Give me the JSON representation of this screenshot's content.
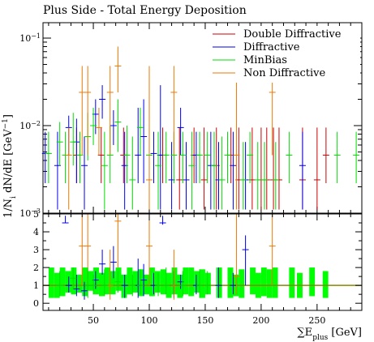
{
  "chart_data": [
    {
      "type": "scatter",
      "title": "Plus Side - Total Energy Deposition",
      "ylabel": "1/N_{i} dN/dE [GeV^{-1}]",
      "yscale": "log",
      "ylim": [
        0.001,
        0.15
      ],
      "xlim": [
        5,
        290
      ],
      "x_ticks": [
        50,
        100,
        150,
        200,
        250
      ],
      "y_tick_labels": [
        "10^{-3}",
        "10^{-2}",
        "10^{-1}"
      ],
      "legend": {
        "placement": "top-right",
        "entries": [
          {
            "name": "Double Diffractive",
            "color": "#cc0000"
          },
          {
            "name": "Diffractive",
            "color": "#0000ee"
          },
          {
            "name": "MinBias",
            "color": "#00dd00"
          },
          {
            "name": "Non Diffractive",
            "color": "#ee7700"
          }
        ]
      },
      "series": [
        {
          "name": "Double Diffractive",
          "color": "#cc0000",
          "points": [
            [
              35,
              0.0046,
              0.0022,
              0.0095
            ],
            [
              57,
              0.0046,
              0.0022,
              0.0095
            ],
            [
              77,
              0.0046,
              0.0022,
              0.0095
            ],
            [
              112,
              0.0046,
              0.0022,
              0.0095
            ],
            [
              127,
              0.0024,
              0.0011,
              0.0095
            ],
            [
              140,
              0.0046,
              0.0022,
              0.0095
            ],
            [
              149,
              0.0024,
              0.0011,
              0.0095
            ],
            [
              160,
              0.0035,
              0.0011,
              0.0095
            ],
            [
              173,
              0.0046,
              0.0022,
              0.0095
            ],
            [
              180,
              0.0024,
              0.0011,
              0.0095
            ],
            [
              192,
              0.0024,
              0.0011,
              0.0095
            ],
            [
              200,
              0.0024,
              0.0011,
              0.0095
            ],
            [
              205,
              0.0024,
              0.0011,
              0.0095
            ],
            [
              211,
              0.0024,
              0.0011,
              0.0095
            ],
            [
              216,
              0.0024,
              0.0011,
              0.0095
            ],
            [
              237,
              0.0024,
              0.0011,
              0.0095
            ],
            [
              250,
              0.0024,
              0.0011,
              0.0095
            ],
            [
              258,
              0.0046,
              0.0022,
              0.0095
            ]
          ]
        },
        {
          "name": "Diffractive",
          "color": "#0000ee",
          "points": [
            [
              7,
              0.0048,
              0.0022,
              0.0085
            ],
            [
              18,
              0.0035,
              0.0011,
              0.0085
            ],
            [
              28,
              0.0095,
              0.0046,
              0.013
            ],
            [
              35,
              0.0065,
              0.0022,
              0.012
            ],
            [
              42,
              0.0035,
              0.0011,
              0.0075
            ],
            [
              52,
              0.0135,
              0.008,
              0.02
            ],
            [
              58,
              0.02,
              0.012,
              0.029
            ],
            [
              68,
              0.01,
              0.006,
              0.015
            ],
            [
              78,
              0.0035,
              0.0011,
              0.0085
            ],
            [
              90,
              0.0046,
              0.0022,
              0.016
            ],
            [
              95,
              0.0075,
              0.0022,
              0.02
            ],
            [
              104,
              0.0048,
              0.0022,
              0.0085
            ],
            [
              110,
              0.0046,
              0.0011,
              0.029
            ],
            [
              120,
              0.0024,
              0.0011,
              0.0065
            ],
            [
              128,
              0.0095,
              0.0046,
              0.016
            ],
            [
              133,
              0.0024,
              0.0011,
              0.0065
            ],
            [
              142,
              0.0046,
              0.0022,
              0.0085
            ],
            [
              155,
              0.0035,
              0.0011,
              0.0085
            ],
            [
              162,
              0.0024,
              0.0011,
              0.0065
            ],
            [
              175,
              0.0035,
              0.0011,
              0.0085
            ],
            [
              186,
              0.0024,
              0.0011,
              0.0065
            ],
            [
              237,
              0.0035,
              0.0011,
              0.0085
            ]
          ]
        },
        {
          "name": "MinBias",
          "color": "#00dd00",
          "points": [
            [
              10,
              0.0048,
              0.0022,
              0.0085
            ],
            [
              20,
              0.0065,
              0.0035,
              0.011
            ],
            [
              25,
              0.0046,
              0.0022,
              0.0085
            ],
            [
              32,
              0.0065,
              0.0035,
              0.014
            ],
            [
              38,
              0.0046,
              0.0022,
              0.0085
            ],
            [
              45,
              0.0075,
              0.004,
              0.014
            ],
            [
              50,
              0.01,
              0.006,
              0.016
            ],
            [
              60,
              0.0035,
              0.0011,
              0.0085
            ],
            [
              65,
              0.0046,
              0.0022,
              0.01
            ],
            [
              72,
              0.011,
              0.005,
              0.02
            ],
            [
              80,
              0.0046,
              0.0022,
              0.01
            ],
            [
              85,
              0.0024,
              0.0011,
              0.0075
            ],
            [
              92,
              0.0095,
              0.0046,
              0.016
            ],
            [
              100,
              0.0046,
              0.0022,
              0.012
            ],
            [
              108,
              0.0035,
              0.0011,
              0.0085
            ],
            [
              115,
              0.0046,
              0.0022,
              0.0085
            ],
            [
              122,
              0.0046,
              0.0022,
              0.0085
            ],
            [
              130,
              0.0046,
              0.0022,
              0.0085
            ],
            [
              138,
              0.0035,
              0.0011,
              0.0085
            ],
            [
              145,
              0.0046,
              0.0022,
              0.0085
            ],
            [
              152,
              0.0046,
              0.0022,
              0.0085
            ],
            [
              158,
              0.0035,
              0.0011,
              0.0085
            ],
            [
              165,
              0.0024,
              0.0011,
              0.0075
            ],
            [
              170,
              0.0046,
              0.0022,
              0.0085
            ],
            [
              184,
              0.0024,
              0.0011,
              0.0065
            ],
            [
              190,
              0.0046,
              0.0022,
              0.0085
            ],
            [
              197,
              0.0024,
              0.0011,
              0.0065
            ],
            [
              203,
              0.0024,
              0.0011,
              0.0065
            ],
            [
              213,
              0.0024,
              0.0011,
              0.0065
            ],
            [
              225,
              0.0046,
              0.0022,
              0.0085
            ],
            [
              268,
              0.0046,
              0.0022,
              0.0085
            ],
            [
              285,
              0.0046,
              0.0022,
              0.0085
            ]
          ]
        },
        {
          "name": "Non Diffractive",
          "color": "#ee7700",
          "points": [
            [
              28,
              0.0046,
              0.0011,
              0.0095
            ],
            [
              40,
              0.024,
              0.0046,
              0.048
            ],
            [
              45,
              0.024,
              0.0046,
              0.048
            ],
            [
              55,
              0.0095,
              0.0046,
              0.016
            ],
            [
              65,
              0.024,
              0.0046,
              0.048
            ],
            [
              72,
              0.048,
              0.024,
              0.08
            ],
            [
              100,
              0.0024,
              0.0011,
              0.048
            ],
            [
              122,
              0.024,
              0.0046,
              0.048
            ],
            [
              178,
              0.0046,
              0.0011,
              0.048
            ],
            [
              210,
              0.024,
              0.0046,
              0.048
            ]
          ]
        }
      ]
    },
    {
      "type": "scatter",
      "xlabel": "∑E_{plus} [GeV]",
      "ylabel": "",
      "xlim": [
        5,
        290
      ],
      "ylim": [
        -0.4,
        5
      ],
      "x_ticks": [
        50,
        100,
        150,
        200,
        250
      ],
      "y_ticks": [
        0,
        1,
        2,
        3,
        4,
        5
      ],
      "reference_line": {
        "y": 1,
        "color": "#888800"
      },
      "band": {
        "color": "#00ff00",
        "description": "MinBias uncertainty band",
        "bins": [
          [
            10,
            15,
            0.3,
            2.0
          ],
          [
            15,
            20,
            0.3,
            1.7
          ],
          [
            20,
            25,
            0.4,
            2.0
          ],
          [
            25,
            30,
            0.6,
            1.8
          ],
          [
            30,
            35,
            0.5,
            2.0
          ],
          [
            35,
            40,
            0.6,
            1.6
          ],
          [
            40,
            45,
            0.4,
            2.0
          ],
          [
            45,
            50,
            0.7,
            1.8
          ],
          [
            50,
            55,
            0.5,
            2.0
          ],
          [
            55,
            60,
            0.4,
            1.7
          ],
          [
            60,
            65,
            0.5,
            2.0
          ],
          [
            65,
            70,
            0.5,
            1.8
          ],
          [
            70,
            75,
            0.7,
            2.0
          ],
          [
            75,
            80,
            0.3,
            1.6
          ],
          [
            80,
            85,
            0.5,
            2.0
          ],
          [
            85,
            90,
            0.6,
            1.8
          ],
          [
            90,
            95,
            0.4,
            1.9
          ],
          [
            95,
            100,
            0.5,
            1.6
          ],
          [
            100,
            105,
            0.4,
            2.0
          ],
          [
            105,
            110,
            0.6,
            1.8
          ],
          [
            110,
            115,
            0.5,
            1.9
          ],
          [
            115,
            120,
            0.3,
            1.7
          ],
          [
            120,
            125,
            0.5,
            2.0
          ],
          [
            125,
            130,
            0.3,
            1.6
          ],
          [
            130,
            135,
            0.5,
            2.0
          ],
          [
            135,
            140,
            0.4,
            2.0
          ],
          [
            140,
            145,
            0.6,
            1.8
          ],
          [
            145,
            150,
            0.3,
            1.9
          ],
          [
            150,
            155,
            0.5,
            1.7
          ],
          [
            160,
            165,
            0.3,
            2.0
          ],
          [
            170,
            175,
            0.3,
            2.0
          ],
          [
            175,
            180,
            0.4,
            1.6
          ],
          [
            180,
            185,
            0.3,
            1.9
          ],
          [
            190,
            195,
            0.5,
            2.0
          ],
          [
            195,
            200,
            0.3,
            1.7
          ],
          [
            200,
            205,
            0.4,
            2.0
          ],
          [
            205,
            210,
            0.3,
            1.9
          ],
          [
            210,
            215,
            0.3,
            2.0
          ],
          [
            225,
            230,
            0.3,
            2.0
          ],
          [
            232,
            237,
            0.3,
            1.7
          ],
          [
            243,
            248,
            0.4,
            2.0
          ],
          [
            255,
            260,
            0.3,
            1.8
          ]
        ]
      },
      "series": [
        {
          "name": "Diffractive",
          "color": "#0000ee",
          "points": [
            [
              25,
              4.5,
              4.5,
              4.9
            ],
            [
              28,
              1.0,
              0.6,
              1.5
            ],
            [
              35,
              0.8,
              0.4,
              1.6
            ],
            [
              42,
              0.7,
              0.2,
              1.2
            ],
            [
              52,
              1.3,
              0.8,
              1.8
            ],
            [
              58,
              2.2,
              1.6,
              3.0
            ],
            [
              68,
              2.3,
              1.4,
              3.2
            ],
            [
              78,
              1.0,
              0.3,
              1.6
            ],
            [
              90,
              1.0,
              0.3,
              2.5
            ],
            [
              95,
              1.3,
              0.4,
              2.2
            ],
            [
              104,
              1.0,
              0.5,
              1.7
            ],
            [
              112,
              4.5,
              4.4,
              4.9
            ],
            [
              122,
              1.0,
              0.3,
              1.8
            ],
            [
              128,
              1.2,
              0.8,
              1.6
            ],
            [
              142,
              1.0,
              0.5,
              1.6
            ],
            [
              162,
              1.0,
              0.3,
              2.0
            ],
            [
              175,
              1.0,
              0.5,
              1.7
            ],
            [
              186,
              3.0,
              1.0,
              3.8
            ]
          ]
        },
        {
          "name": "Non Diffractive",
          "color": "#ee7700",
          "points": [
            [
              40,
              3.2,
              1.0,
              5.0
            ],
            [
              45,
              3.2,
              1.0,
              5.0
            ],
            [
              65,
              1.0,
              0.2,
              3.0
            ],
            [
              72,
              4.6,
              2.0,
              5.0
            ],
            [
              100,
              3.2,
              1.0,
              5.0
            ],
            [
              122,
              1.0,
              0.2,
              3.0
            ],
            [
              178,
              1.5,
              0.5,
              5.0
            ],
            [
              210,
              3.2,
              1.0,
              5.0
            ]
          ]
        },
        {
          "name": "MinBias",
          "color": "#00dd00",
          "points": [
            [
              20,
              1.0,
              0.4,
              1.8
            ],
            [
              32,
              1.4,
              0.8,
              2.0
            ],
            [
              45,
              1.0,
              0.3,
              2.0
            ],
            [
              50,
              1.0,
              0.5,
              1.6
            ],
            [
              60,
              1.0,
              0.4,
              1.9
            ],
            [
              72,
              1.2,
              0.6,
              1.8
            ],
            [
              85,
              1.0,
              0.4,
              1.6
            ],
            [
              92,
              1.0,
              0.5,
              1.9
            ],
            [
              108,
              1.0,
              0.4,
              1.7
            ],
            [
              115,
              1.0,
              0.5,
              2.0
            ],
            [
              130,
              1.0,
              0.4,
              1.8
            ],
            [
              145,
              1.0,
              0.3,
              1.9
            ],
            [
              152,
              1.0,
              0.5,
              1.8
            ]
          ]
        }
      ]
    }
  ]
}
